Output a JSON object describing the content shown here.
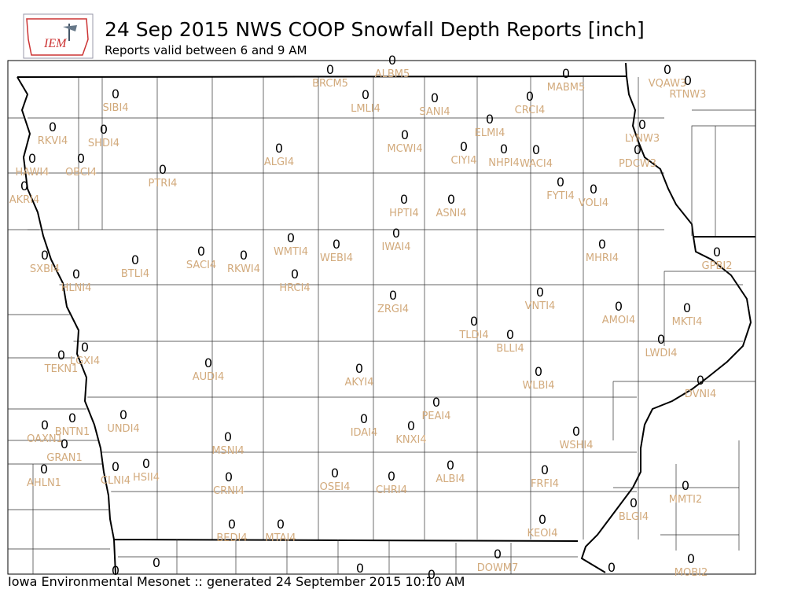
{
  "header": {
    "logo_text": "IEM",
    "title": "24 Sep 2015 NWS COOP Snowfall Depth Reports [inch]",
    "subtitle": "Reports valid between 6 and 9 AM"
  },
  "footer": "Iowa Environmental Mesonet :: generated 24 September 2015 10:10 AM",
  "stations": [
    {
      "id": "BRCM5",
      "value": 0
    },
    {
      "id": "ALBM5",
      "value": 0
    },
    {
      "id": "MABM5",
      "value": 0
    },
    {
      "id": "VQAW3",
      "value": 0
    },
    {
      "id": "RTNW3",
      "value": 0
    },
    {
      "id": "SIBI4",
      "value": 0
    },
    {
      "id": "LMLI4",
      "value": 0
    },
    {
      "id": "SANI4",
      "value": 0
    },
    {
      "id": "CRCI4",
      "value": 0
    },
    {
      "id": "ELMI4",
      "value": 0
    },
    {
      "id": "RKVI4",
      "value": 0
    },
    {
      "id": "SHDI4",
      "value": 0
    },
    {
      "id": "MCWI4",
      "value": 0
    },
    {
      "id": "LYNW3",
      "value": 0
    },
    {
      "id": "CIYI4",
      "value": 0
    },
    {
      "id": "NHPI4",
      "value": 0
    },
    {
      "id": "WACI4",
      "value": 0
    },
    {
      "id": "PDCW3",
      "value": 0
    },
    {
      "id": "ALGI4",
      "value": 0
    },
    {
      "id": "HAWI4",
      "value": 0
    },
    {
      "id": "OBCI4",
      "value": 0
    },
    {
      "id": "PTRI4",
      "value": 0
    },
    {
      "id": "AKRI4",
      "value": 0
    },
    {
      "id": "FYTI4",
      "value": 0
    },
    {
      "id": "VOLI4",
      "value": 0
    },
    {
      "id": "HPTI4",
      "value": 0
    },
    {
      "id": "ASNI4",
      "value": 0
    },
    {
      "id": "IWAI4",
      "value": 0
    },
    {
      "id": "WMTI4",
      "value": 0
    },
    {
      "id": "WEBI4",
      "value": 0
    },
    {
      "id": "MHRI4",
      "value": 0
    },
    {
      "id": "SXBI4",
      "value": 0
    },
    {
      "id": "SACI4",
      "value": 0
    },
    {
      "id": "RKWI4",
      "value": 0
    },
    {
      "id": "BTLI4",
      "value": 0
    },
    {
      "id": "GPBI2",
      "value": 0
    },
    {
      "id": "HLNI4",
      "value": 0
    },
    {
      "id": "HRCI4",
      "value": 0
    },
    {
      "id": "ZRGI4",
      "value": 0
    },
    {
      "id": "VNTI4",
      "value": 0
    },
    {
      "id": "AMOI4",
      "value": 0
    },
    {
      "id": "MKTI4",
      "value": 0
    },
    {
      "id": "TLDI4",
      "value": 0
    },
    {
      "id": "BLLI4",
      "value": 0
    },
    {
      "id": "LWDI4",
      "value": 0
    },
    {
      "id": "LGXI4",
      "value": 0
    },
    {
      "id": "TEKN1",
      "value": 0
    },
    {
      "id": "AUDI4",
      "value": 0
    },
    {
      "id": "AKYI4",
      "value": 0
    },
    {
      "id": "WLBI4",
      "value": 0
    },
    {
      "id": "DVNI4",
      "value": 0
    },
    {
      "id": "PEAI4",
      "value": 0
    },
    {
      "id": "UNDI4",
      "value": 0
    },
    {
      "id": "BNTN1",
      "value": 0
    },
    {
      "id": "IDAI4",
      "value": 0
    },
    {
      "id": "KNXI4",
      "value": 0
    },
    {
      "id": "OAXN1",
      "value": 0
    },
    {
      "id": "WSHI4",
      "value": 0
    },
    {
      "id": "MSNI4",
      "value": 0
    },
    {
      "id": "GRAN1",
      "value": 0
    },
    {
      "id": "CLNI4",
      "value": 0
    },
    {
      "id": "HSII4",
      "value": 0
    },
    {
      "id": "ALBI4",
      "value": 0
    },
    {
      "id": "FRFI4",
      "value": 0
    },
    {
      "id": "AHLN1",
      "value": 0
    },
    {
      "id": "OSEI4",
      "value": 0
    },
    {
      "id": "CHRI4",
      "value": 0
    },
    {
      "id": "CRNI4",
      "value": 0
    },
    {
      "id": "MMTI2",
      "value": 0
    },
    {
      "id": "BLGI4",
      "value": 0
    },
    {
      "id": "KEOI4",
      "value": 0
    },
    {
      "id": "BEDI4",
      "value": 0
    },
    {
      "id": "MTAI4",
      "value": 0
    },
    {
      "id": "DOWM7",
      "value": 0
    },
    {
      "id": "MOBI2",
      "value": 0
    },
    {
      "id": null,
      "value": 0
    },
    {
      "id": null,
      "value": 0
    },
    {
      "id": null,
      "value": 0
    },
    {
      "id": null,
      "value": 0
    },
    {
      "id": null,
      "value": 0
    }
  ]
}
